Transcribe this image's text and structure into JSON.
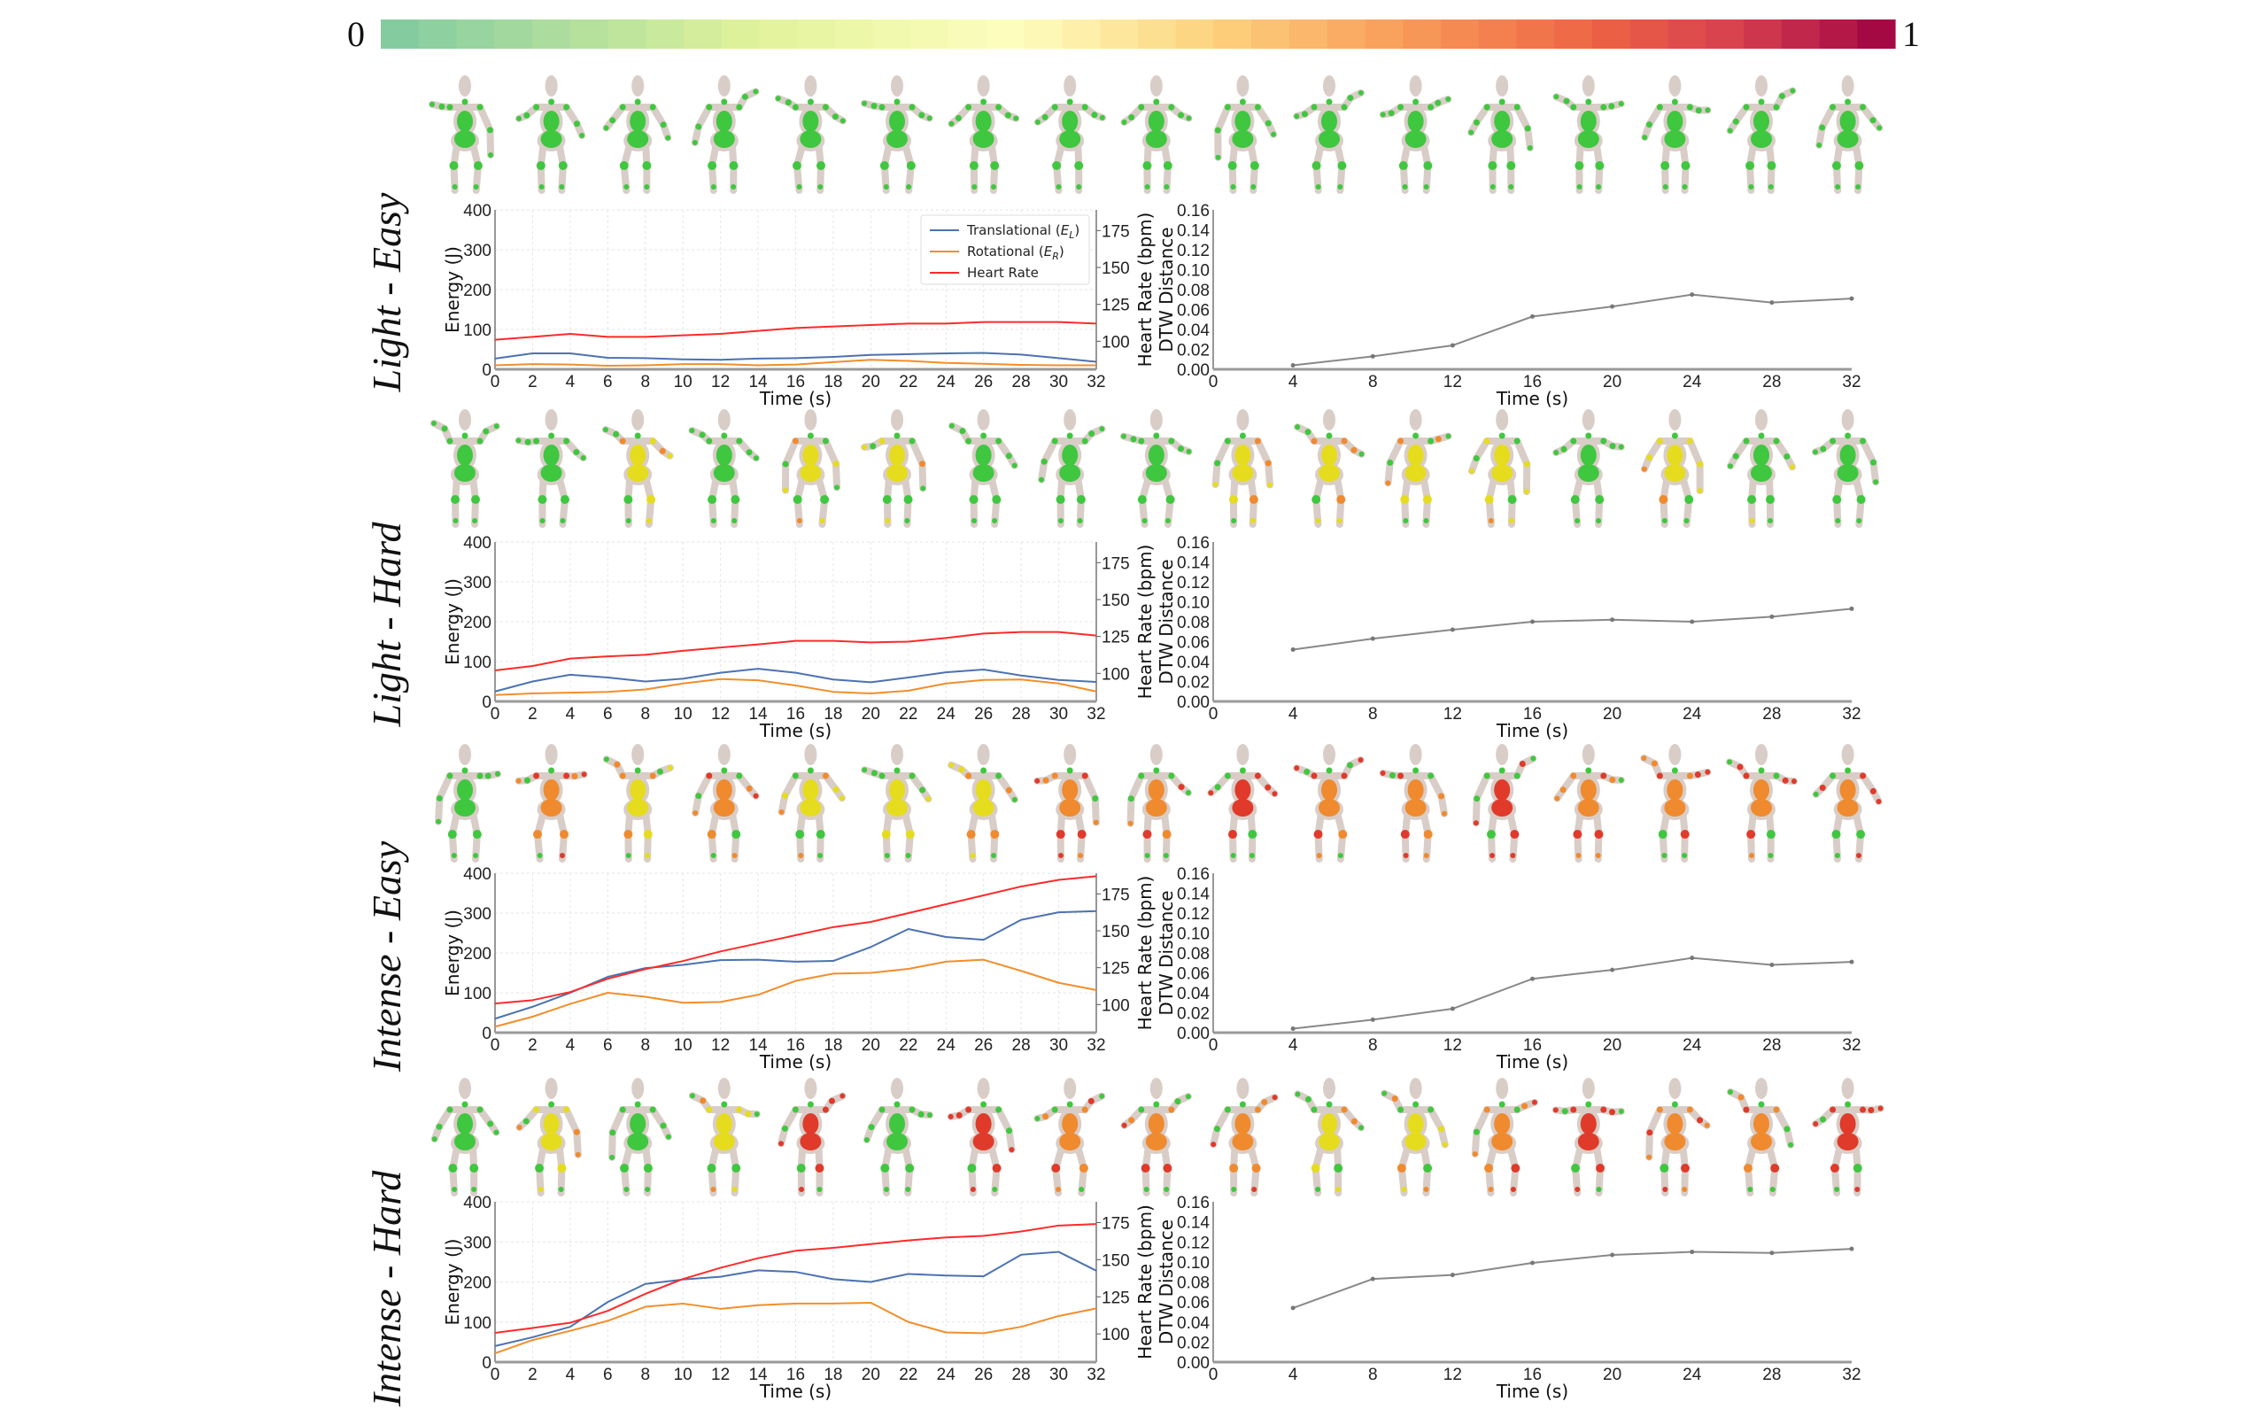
{
  "colorbar": {
    "min_label": "0",
    "max_label": "1",
    "stops": [
      [
        0,
        "#7fcaa0"
      ],
      [
        0.25,
        "#e2f39b"
      ],
      [
        0.42,
        "#fefebf"
      ],
      [
        0.55,
        "#fdd27e"
      ],
      [
        0.68,
        "#f89a58"
      ],
      [
        0.8,
        "#ee6444"
      ],
      [
        0.9,
        "#d53e4f"
      ],
      [
        1,
        "#9e0142"
      ]
    ],
    "figure_palette": [
      [
        0,
        "#3fc73f"
      ],
      [
        0.45,
        "#e6dc1e"
      ],
      [
        0.7,
        "#f08a2e"
      ],
      [
        0.9,
        "#e03a2a"
      ]
    ]
  },
  "legend": {
    "items": [
      {
        "text": "Translational (",
        "symbol": "E",
        "subscript": "L",
        "close": ")",
        "color": "#4c72b0"
      },
      {
        "text": "Rotational (",
        "symbol": "E",
        "subscript": "R",
        "close": ")",
        "color": "#f28e2b"
      },
      {
        "text": "Heart Rate",
        "symbol": "",
        "subscript": "",
        "close": "",
        "color": "#ff2a2a"
      }
    ]
  },
  "rows": [
    {
      "label": "Light - Easy",
      "figure_heat": [
        0.05,
        0.05,
        0.05,
        0.05,
        0.05,
        0.05,
        0.05,
        0.05,
        0.05,
        0.05,
        0.05,
        0.05,
        0.05,
        0.05,
        0.05,
        0.05,
        0.05
      ]
    },
    {
      "label": "Light - Hard",
      "figure_heat": [
        0.05,
        0.05,
        0.45,
        0.05,
        0.45,
        0.45,
        0.05,
        0.05,
        0.05,
        0.45,
        0.45,
        0.45,
        0.45,
        0.05,
        0.45,
        0.3,
        0.05
      ]
    },
    {
      "label": "Intense - Easy",
      "figure_heat": [
        0.05,
        0.7,
        0.45,
        0.7,
        0.45,
        0.45,
        0.45,
        0.7,
        0.7,
        0.9,
        0.8,
        0.7,
        0.9,
        0.7,
        0.8,
        0.7,
        0.7
      ]
    },
    {
      "label": "Intense - Hard",
      "figure_heat": [
        0.05,
        0.45,
        0.05,
        0.45,
        0.9,
        0.05,
        0.9,
        0.7,
        0.7,
        0.7,
        0.45,
        0.45,
        0.7,
        0.9,
        0.7,
        0.7,
        0.9
      ]
    }
  ],
  "axes": {
    "energy": {
      "xlabel": "Time (s)",
      "ylabel": "Energy (J)",
      "y2label": "Heart Rate (bpm)",
      "xticks": [
        "0",
        "2",
        "4",
        "6",
        "8",
        "10",
        "12",
        "14",
        "16",
        "18",
        "20",
        "22",
        "24",
        "26",
        "28",
        "30",
        "32"
      ],
      "yticks": [
        "0",
        "100",
        "200",
        "300",
        "400"
      ],
      "y2ticks": [
        "100",
        "125",
        "150",
        "175"
      ],
      "xlim": [
        0,
        32
      ],
      "ylim": [
        0,
        400
      ],
      "y2lim": [
        81,
        189
      ]
    },
    "dtw": {
      "xlabel": "Time (s)",
      "ylabel": "DTW Distance",
      "xticks": [
        "0",
        "4",
        "8",
        "12",
        "16",
        "20",
        "24",
        "28",
        "32"
      ],
      "yticks": [
        "0.00",
        "0.02",
        "0.04",
        "0.06",
        "0.08",
        "0.10",
        "0.12",
        "0.14",
        "0.16"
      ],
      "xlim": [
        0,
        32
      ],
      "ylim": [
        0,
        0.16
      ]
    }
  },
  "chart_data": [
    {
      "type": "line",
      "row": "Light - Easy",
      "kind": "energy",
      "grid": true,
      "legend": "top-right",
      "x": [
        0,
        2,
        4,
        6,
        8,
        10,
        12,
        14,
        16,
        18,
        20,
        22,
        24,
        26,
        28,
        30,
        32
      ],
      "series": [
        {
          "name": "Translational (E_L)",
          "axis": "left",
          "values": [
            27,
            40,
            40,
            29,
            28,
            25,
            24,
            27,
            28,
            31,
            36,
            38,
            40,
            41,
            37,
            28,
            19
          ]
        },
        {
          "name": "Rotational (E_R)",
          "axis": "left",
          "values": [
            10,
            13,
            12,
            9,
            10,
            13,
            13,
            10,
            12,
            18,
            24,
            21,
            16,
            14,
            11,
            10,
            10
          ]
        },
        {
          "name": "Heart Rate",
          "axis": "right",
          "values": [
            101,
            103,
            105,
            103,
            103,
            104,
            105,
            107,
            109,
            110,
            111,
            112,
            112,
            113,
            113,
            113,
            112
          ]
        }
      ]
    },
    {
      "type": "line",
      "row": "Light - Easy",
      "kind": "dtw",
      "x": [
        4,
        8,
        12,
        16,
        20,
        24,
        28,
        32
      ],
      "series": [
        {
          "name": "DTW Distance",
          "values": [
            0.004,
            0.013,
            0.024,
            0.053,
            0.063,
            0.075,
            0.067,
            0.071
          ]
        }
      ]
    },
    {
      "type": "line",
      "row": "Light - Hard",
      "kind": "energy",
      "grid": true,
      "x": [
        0,
        2,
        4,
        6,
        8,
        10,
        12,
        14,
        16,
        18,
        20,
        22,
        24,
        26,
        28,
        30,
        32
      ],
      "series": [
        {
          "name": "Translational (E_L)",
          "axis": "left",
          "values": [
            25,
            50,
            67,
            60,
            50,
            57,
            72,
            82,
            72,
            55,
            48,
            60,
            73,
            80,
            65,
            54,
            49
          ]
        },
        {
          "name": "Rotational (E_R)",
          "axis": "left",
          "values": [
            16,
            20,
            22,
            24,
            30,
            45,
            56,
            53,
            40,
            24,
            20,
            27,
            45,
            54,
            55,
            45,
            25
          ]
        },
        {
          "name": "Heart Rate",
          "axis": "right",
          "values": [
            102,
            105,
            110,
            111.5,
            112.6,
            115.3,
            117.5,
            119.6,
            122,
            122,
            121,
            121.5,
            124,
            127,
            128,
            128,
            125.6
          ]
        }
      ]
    },
    {
      "type": "line",
      "row": "Light - Hard",
      "kind": "dtw",
      "x": [
        4,
        8,
        12,
        16,
        20,
        24,
        28,
        32
      ],
      "series": [
        {
          "name": "DTW Distance",
          "values": [
            0.052,
            0.063,
            0.072,
            0.08,
            0.082,
            0.08,
            0.085,
            0.093
          ]
        }
      ]
    },
    {
      "type": "line",
      "row": "Intense - Easy",
      "kind": "energy",
      "grid": true,
      "x": [
        0,
        2,
        4,
        6,
        8,
        10,
        12,
        14,
        16,
        18,
        20,
        22,
        24,
        26,
        28,
        30,
        32
      ],
      "series": [
        {
          "name": "Translational (E_L)",
          "axis": "left",
          "values": [
            35,
            65,
            100,
            140,
            162,
            170,
            182,
            183,
            178,
            180,
            215,
            260,
            240,
            233,
            283,
            302,
            305
          ]
        },
        {
          "name": "Rotational (E_R)",
          "axis": "left",
          "values": [
            15,
            40,
            72,
            100,
            90,
            75,
            77,
            95,
            130,
            148,
            150,
            160,
            178,
            183,
            155,
            125,
            107
          ]
        },
        {
          "name": "Heart Rate",
          "axis": "right",
          "values": [
            100.7,
            103,
            108.5,
            117.5,
            124,
            129.5,
            136,
            141.5,
            147,
            152.5,
            156,
            162,
            168,
            174,
            180,
            184.5,
            187
          ]
        }
      ]
    },
    {
      "type": "line",
      "row": "Intense - Easy",
      "kind": "dtw",
      "x": [
        4,
        8,
        12,
        16,
        20,
        24,
        28,
        32
      ],
      "series": [
        {
          "name": "DTW Distance",
          "values": [
            0.004,
            0.013,
            0.024,
            0.054,
            0.063,
            0.075,
            0.068,
            0.071
          ]
        }
      ]
    },
    {
      "type": "line",
      "row": "Intense - Hard",
      "kind": "energy",
      "grid": true,
      "x": [
        0,
        2,
        4,
        6,
        8,
        10,
        12,
        14,
        16,
        18,
        20,
        22,
        24,
        26,
        28,
        30,
        32
      ],
      "series": [
        {
          "name": "Translational (E_L)",
          "axis": "left",
          "values": [
            40,
            62,
            88,
            150,
            195,
            206,
            213,
            229,
            225,
            207,
            200,
            220,
            216,
            214,
            268,
            275,
            228
          ]
        },
        {
          "name": "Rotational (E_R)",
          "axis": "left",
          "values": [
            22,
            55,
            78,
            103,
            138,
            146,
            133,
            142,
            146,
            146,
            148,
            100,
            74,
            72,
            88,
            115,
            134
          ]
        },
        {
          "name": "Heart Rate",
          "axis": "right",
          "values": [
            100.7,
            104,
            107.5,
            115.5,
            127,
            137,
            144.5,
            151,
            156,
            158,
            160.5,
            163,
            165,
            166,
            169,
            173,
            174
          ]
        }
      ]
    },
    {
      "type": "line",
      "row": "Intense - Hard",
      "kind": "dtw",
      "x": [
        4,
        8,
        12,
        16,
        20,
        24,
        28,
        32
      ],
      "series": [
        {
          "name": "DTW Distance",
          "values": [
            0.054,
            0.083,
            0.087,
            0.099,
            0.107,
            0.11,
            0.109,
            0.113
          ]
        }
      ]
    }
  ]
}
